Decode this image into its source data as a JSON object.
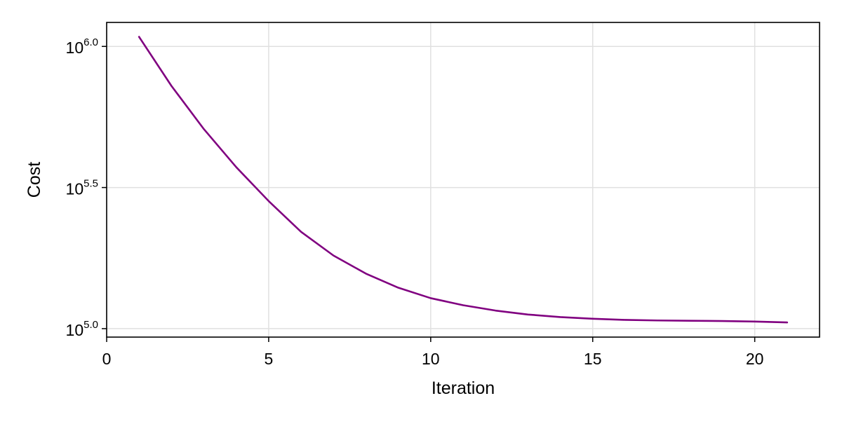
{
  "chart_data": {
    "type": "line",
    "title": "",
    "xlabel": "Iteration",
    "ylabel": "Cost",
    "xlim": [
      0,
      22
    ],
    "ylim_log10": [
      4.97,
      6.085
    ],
    "yscale": "log10",
    "grid": true,
    "legend": "none",
    "x_ticks": [
      0,
      5,
      10,
      15,
      20
    ],
    "x_tick_labels": [
      "0",
      "5",
      "10",
      "15",
      "20"
    ],
    "y_ticks_log10": [
      5.0,
      5.5,
      6.0
    ],
    "y_tick_labels": [
      {
        "base": "10",
        "exponent": "5.0"
      },
      {
        "base": "10",
        "exponent": "5.5"
      },
      {
        "base": "10",
        "exponent": "6.0"
      }
    ],
    "series": [
      {
        "name": "cost",
        "color": "#800080",
        "x": [
          1,
          2,
          3,
          4,
          5,
          6,
          7,
          8,
          9,
          10,
          11,
          12,
          13,
          14,
          15,
          16,
          17,
          18,
          19,
          20,
          21
        ],
        "log10_values": [
          6.034,
          5.86,
          5.707,
          5.572,
          5.452,
          5.343,
          5.259,
          5.195,
          5.145,
          5.108,
          5.083,
          5.064,
          5.05,
          5.041,
          5.035,
          5.031,
          5.029,
          5.028,
          5.027,
          5.025,
          5.022
        ]
      }
    ],
    "colors": {
      "axis": "#000000",
      "grid": "#e0e0e0",
      "background": "#ffffff"
    }
  }
}
